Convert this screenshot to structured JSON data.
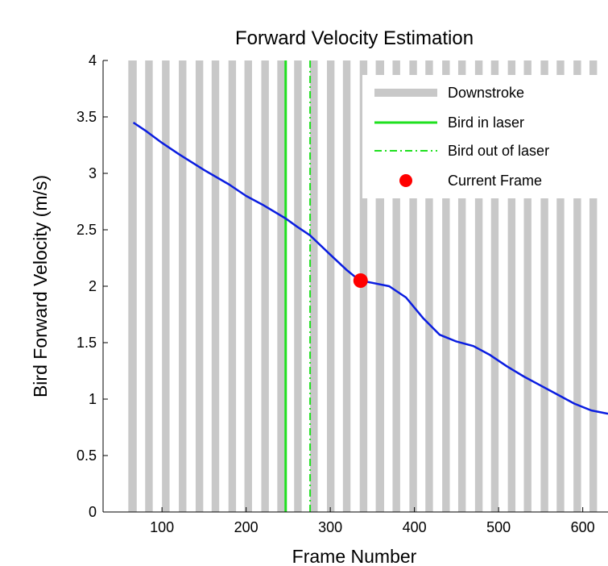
{
  "chart_data": {
    "type": "line",
    "title": "Forward Velocity Estimation",
    "xlabel": "Frame Number",
    "ylabel": "Bird Forward Velocity (m/s)",
    "xlim": [
      30,
      630
    ],
    "ylim": [
      0,
      4
    ],
    "x_ticks": [
      100,
      200,
      300,
      400,
      500,
      600
    ],
    "x_tick_labels": [
      "100",
      "200",
      "300",
      "400",
      "500",
      "600"
    ],
    "y_ticks": [
      0,
      0.5,
      1,
      1.5,
      2,
      2.5,
      3,
      3.5,
      4
    ],
    "y_tick_labels": [
      "0",
      "0.5",
      "1",
      "1.5",
      "2",
      "2.5",
      "3",
      "3.5",
      "4"
    ],
    "grid": false,
    "legend_position": "top-right",
    "legend": [
      {
        "label": "Downstroke",
        "kind": "band"
      },
      {
        "label": "Bird in laser",
        "kind": "solid-line"
      },
      {
        "label": "Bird out of laser",
        "kind": "dashdot-line"
      },
      {
        "label": "Current Frame",
        "kind": "marker"
      }
    ],
    "downstroke_ranges": [
      [
        60,
        70
      ],
      [
        80,
        89
      ],
      [
        100,
        109
      ],
      [
        120,
        129
      ],
      [
        140,
        149
      ],
      [
        159,
        168
      ],
      [
        179,
        188
      ],
      [
        198,
        207
      ],
      [
        218,
        227
      ],
      [
        237,
        246
      ],
      [
        257,
        266
      ],
      [
        276,
        285
      ],
      [
        296,
        305
      ],
      [
        315,
        324
      ],
      [
        335,
        344
      ],
      [
        354,
        364
      ],
      [
        374,
        383
      ],
      [
        394,
        403
      ],
      [
        413,
        422
      ],
      [
        433,
        442
      ],
      [
        452,
        461
      ],
      [
        472,
        481
      ],
      [
        491,
        500
      ],
      [
        511,
        520
      ],
      [
        530,
        539
      ],
      [
        550,
        559
      ],
      [
        569,
        578
      ],
      [
        589,
        598
      ],
      [
        608,
        617
      ]
    ],
    "bird_in_laser_frame": 247,
    "bird_out_of_laser_frame": 276,
    "current_frame": {
      "x": 336,
      "y": 2.05
    },
    "series": [
      {
        "name": "Forward velocity",
        "x": [
          66,
          80,
          100,
          120,
          150,
          180,
          200,
          220,
          247,
          260,
          276,
          300,
          320,
          330,
          336,
          350,
          370,
          390,
          410,
          430,
          450,
          470,
          490,
          510,
          530,
          550,
          570,
          590,
          610,
          630
        ],
        "y": [
          3.45,
          3.38,
          3.27,
          3.17,
          3.03,
          2.9,
          2.8,
          2.72,
          2.6,
          2.53,
          2.45,
          2.28,
          2.14,
          2.08,
          2.05,
          2.03,
          2.0,
          1.9,
          1.72,
          1.57,
          1.51,
          1.47,
          1.39,
          1.29,
          1.2,
          1.12,
          1.04,
          0.96,
          0.9,
          0.87
        ]
      }
    ],
    "colors": {
      "downstroke": "#c8c8c8",
      "line": "#0a1de0",
      "laser": "#1fe01f",
      "marker": "#ff0000",
      "legend_bg": "#ffffff"
    }
  }
}
